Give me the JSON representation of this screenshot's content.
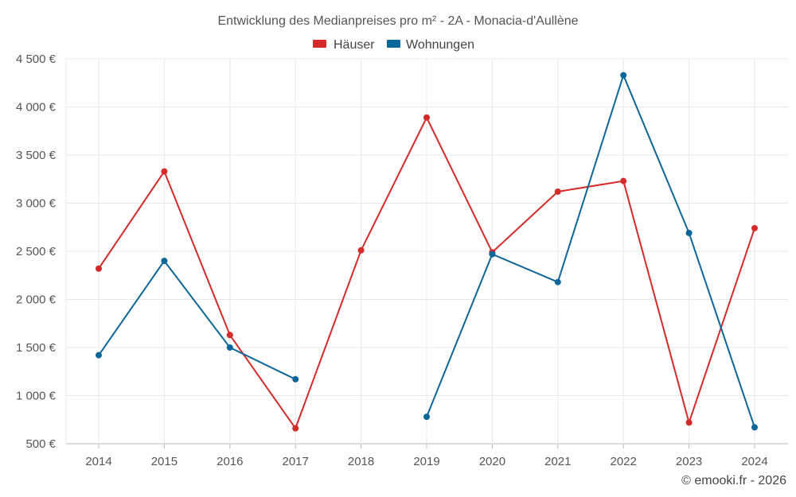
{
  "chart_data": {
    "type": "line",
    "title": "Entwicklung des Medianpreises pro m² - 2A - Monacia-d'Aullène",
    "categories": [
      "2014",
      "2015",
      "2016",
      "2017",
      "2018",
      "2019",
      "2020",
      "2021",
      "2022",
      "2023",
      "2024"
    ],
    "ylim": [
      500,
      4500
    ],
    "yticks": [
      500,
      1000,
      1500,
      2000,
      2500,
      3000,
      3500,
      4000,
      4500
    ],
    "ytick_labels": [
      "500 €",
      "1 000 €",
      "1 500 €",
      "2 000 €",
      "2 500 €",
      "3 000 €",
      "3 500 €",
      "4 000 €",
      "4 500 €"
    ],
    "grid": true,
    "legend_position": "top-center",
    "series": [
      {
        "name": "Häuser",
        "color": "#d42a2a",
        "values": [
          2320,
          3330,
          1630,
          660,
          2510,
          3890,
          2490,
          3120,
          3230,
          720,
          2740
        ]
      },
      {
        "name": "Wohnungen",
        "color": "#0b6699",
        "values": [
          1420,
          2400,
          1500,
          1170,
          null,
          780,
          2470,
          2180,
          4330,
          2690,
          670
        ]
      }
    ]
  },
  "credit": "© emooki.fr - 2026"
}
